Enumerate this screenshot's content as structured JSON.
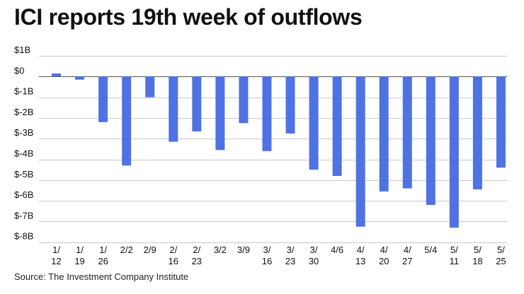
{
  "title": "ICI reports 19th week of outflows",
  "source": "Source: The Investment Company Institute",
  "chart_data": {
    "type": "bar",
    "title": "ICI reports 19th week of outflows",
    "xlabel": "",
    "ylabel": "",
    "unit": "billions USD",
    "ylim": [
      -8,
      1
    ],
    "yticks": [
      1,
      0,
      -1,
      -2,
      -3,
      -4,
      -5,
      -6,
      -7,
      -8
    ],
    "ytick_labels": [
      "$1B",
      "$0",
      "$-1B",
      "$-2B",
      "$-3B",
      "$-4B",
      "$-5B",
      "$-6B",
      "$-7B",
      "$-8B"
    ],
    "grid": true,
    "bar_color": "#4f72e3",
    "categories": [
      [
        "1/",
        "12"
      ],
      [
        "1/",
        "19"
      ],
      [
        "1/",
        "26"
      ],
      [
        "2/2"
      ],
      [
        "2/9"
      ],
      [
        "2/",
        "16"
      ],
      [
        "2/",
        "23"
      ],
      [
        "3/2"
      ],
      [
        "3/9"
      ],
      [
        "3/",
        "16"
      ],
      [
        "3/",
        "23"
      ],
      [
        "3/",
        "30"
      ],
      [
        "4/6"
      ],
      [
        "4/",
        "13"
      ],
      [
        "4/",
        "20"
      ],
      [
        "4/",
        "27"
      ],
      [
        "5/4"
      ],
      [
        "5/",
        "11"
      ],
      [
        "5/",
        "18"
      ],
      [
        "5/",
        "25"
      ]
    ],
    "values": [
      0.15,
      -0.15,
      -2.2,
      -4.3,
      -1.0,
      -3.15,
      -2.65,
      -3.55,
      -2.25,
      -3.6,
      -2.75,
      -4.5,
      -4.8,
      -7.25,
      -5.55,
      -5.4,
      -6.2,
      -7.3,
      -5.45,
      -4.4
    ]
  }
}
